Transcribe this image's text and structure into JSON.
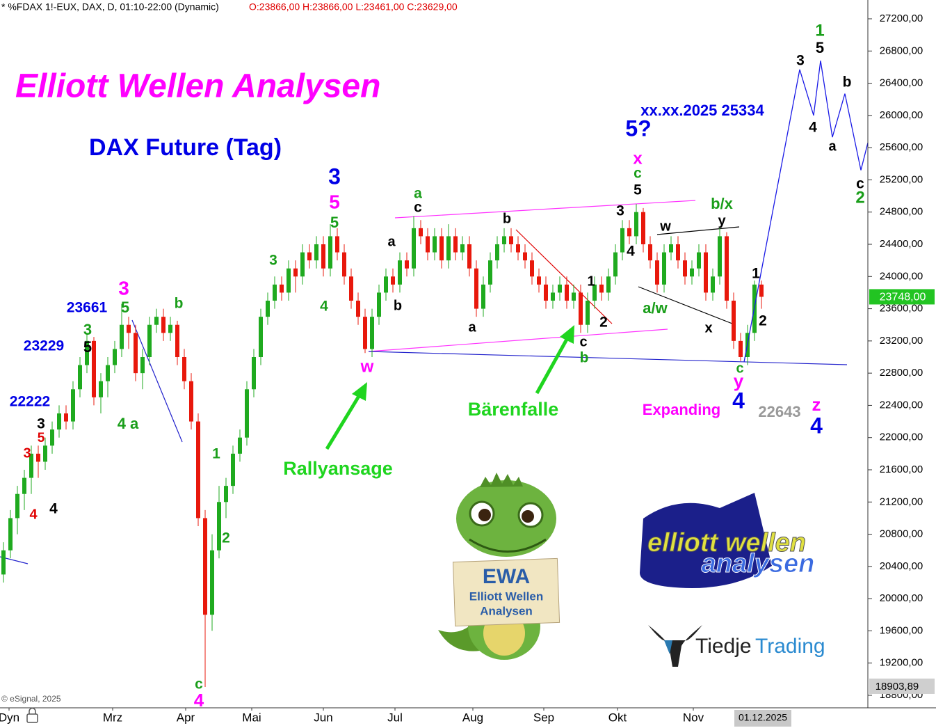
{
  "chart_data": {
    "type": "candlestick",
    "header": "* %FDAX 1!-EUX, DAX, D, 01:10-22:00 (Dynamic)",
    "header_ohlc": "O:23866,00 H:23866,00 L:23461,00 C:23629,00",
    "title": "Elliott Wellen Analysen",
    "subtitle": "DAX Future (Tag)",
    "up_color": "#1faa1f",
    "down_color": "#e8180c",
    "ylim": [
      18800,
      27200
    ],
    "yticks": [
      {
        "value": 18800,
        "label": "18800,00"
      },
      {
        "value": 19200,
        "label": "19200,00"
      },
      {
        "value": 19600,
        "label": "19600,00"
      },
      {
        "value": 20000,
        "label": "20000,00"
      },
      {
        "value": 20400,
        "label": "20400,00"
      },
      {
        "value": 20800,
        "label": "20800,00"
      },
      {
        "value": 21200,
        "label": "21200,00"
      },
      {
        "value": 21600,
        "label": "21600,00"
      },
      {
        "value": 22000,
        "label": "22000,00"
      },
      {
        "value": 22400,
        "label": "22400,00"
      },
      {
        "value": 22800,
        "label": "22800,00"
      },
      {
        "value": 23200,
        "label": "23200,00"
      },
      {
        "value": 23600,
        "label": "23600,00"
      },
      {
        "value": 24000,
        "label": "24000,00"
      },
      {
        "value": 24400,
        "label": "24400,00"
      },
      {
        "value": 24800,
        "label": "24800,00"
      },
      {
        "value": 25200,
        "label": "25200,00"
      },
      {
        "value": 25600,
        "label": "25600,00"
      },
      {
        "value": 26000,
        "label": "26000,00"
      },
      {
        "value": 26400,
        "label": "26400,00"
      },
      {
        "value": 26800,
        "label": "26800,00"
      },
      {
        "value": 27200,
        "label": "27200,00"
      }
    ],
    "xticks": [
      {
        "value": 0.8,
        "label": "Dyn"
      },
      {
        "value": 15.7,
        "label": "Mrz"
      },
      {
        "value": 26.2,
        "label": "Apr"
      },
      {
        "value": 35.7,
        "label": "Mai"
      },
      {
        "value": 46,
        "label": "Jun"
      },
      {
        "value": 56.3,
        "label": "Jul"
      },
      {
        "value": 67.5,
        "label": "Aug"
      },
      {
        "value": 77.7,
        "label": "Sep"
      },
      {
        "value": 88.3,
        "label": "Okt"
      },
      {
        "value": 99.2,
        "label": "Nov"
      }
    ],
    "current_date": "01.12.2025",
    "last_price": {
      "value": 23748,
      "label": "23748,00",
      "color": "#22c422"
    },
    "low_marker": {
      "value": 18903.89,
      "label": "18903,89"
    },
    "copyright": "© eSignal, 2025",
    "ohlc": [
      [
        20300,
        20700,
        20200,
        20600
      ],
      [
        20600,
        21100,
        20500,
        21000
      ],
      [
        21000,
        21400,
        20800,
        21300
      ],
      [
        21300,
        21600,
        21100,
        21500
      ],
      [
        21500,
        21900,
        21300,
        21800
      ],
      [
        21800,
        21900,
        21500,
        21700
      ],
      [
        21700,
        22000,
        21600,
        21900
      ],
      [
        21900,
        22200,
        21800,
        22100
      ],
      [
        22100,
        22400,
        22000,
        22300
      ],
      [
        22300,
        22400,
        22100,
        22200
      ],
      [
        22200,
        22700,
        22100,
        22600
      ],
      [
        22600,
        23000,
        22500,
        22900
      ],
      [
        22900,
        23300,
        22800,
        23200
      ],
      [
        23200,
        23250,
        22400,
        22500
      ],
      [
        22500,
        22800,
        22300,
        22700
      ],
      [
        22700,
        23000,
        22500,
        22900
      ],
      [
        22900,
        23200,
        22800,
        23100
      ],
      [
        23100,
        23660,
        23000,
        23400
      ],
      [
        23400,
        23500,
        23100,
        23300
      ],
      [
        23300,
        23400,
        22700,
        22800
      ],
      [
        22800,
        23100,
        22600,
        23000
      ],
      [
        23000,
        23500,
        22900,
        23400
      ],
      [
        23400,
        23600,
        23300,
        23500
      ],
      [
        23500,
        23600,
        23200,
        23300
      ],
      [
        23300,
        23500,
        23200,
        23400
      ],
      [
        23400,
        23450,
        22900,
        23000
      ],
      [
        23000,
        23100,
        22600,
        22700
      ],
      [
        22700,
        22800,
        22100,
        22200
      ],
      [
        22200,
        22300,
        20900,
        21000
      ],
      [
        21000,
        21100,
        18904,
        19800
      ],
      [
        19800,
        20800,
        19600,
        20600
      ],
      [
        20600,
        21400,
        20500,
        21200
      ],
      [
        21200,
        21500,
        21000,
        21400
      ],
      [
        21400,
        21900,
        21300,
        21800
      ],
      [
        21800,
        22100,
        21700,
        22000
      ],
      [
        22000,
        22700,
        21900,
        22600
      ],
      [
        22600,
        23100,
        22500,
        23000
      ],
      [
        23000,
        23600,
        22900,
        23500
      ],
      [
        23500,
        23800,
        23400,
        23700
      ],
      [
        23700,
        24000,
        23600,
        23900
      ],
      [
        23900,
        24000,
        23700,
        23800
      ],
      [
        23800,
        24200,
        23700,
        24100
      ],
      [
        24100,
        24200,
        23800,
        24000
      ],
      [
        24000,
        24400,
        23900,
        24300
      ],
      [
        24300,
        24400,
        24100,
        24200
      ],
      [
        24200,
        24500,
        24100,
        24400
      ],
      [
        24400,
        24500,
        24000,
        24100
      ],
      [
        24100,
        24650,
        24000,
        24500
      ],
      [
        24500,
        24600,
        24200,
        24300
      ],
      [
        24300,
        24400,
        23900,
        24000
      ],
      [
        24000,
        24100,
        23600,
        23700
      ],
      [
        23700,
        23800,
        23400,
        23500
      ],
      [
        23500,
        23600,
        23050,
        23100
      ],
      [
        23100,
        23600,
        23000,
        23500
      ],
      [
        23500,
        23900,
        23400,
        23800
      ],
      [
        23800,
        24100,
        23700,
        24000
      ],
      [
        24000,
        24100,
        23800,
        23900
      ],
      [
        23900,
        24300,
        23800,
        24200
      ],
      [
        24200,
        24300,
        24000,
        24100
      ],
      [
        24100,
        24750,
        24000,
        24600
      ],
      [
        24600,
        24700,
        24400,
        24500
      ],
      [
        24500,
        24600,
        24200,
        24300
      ],
      [
        24300,
        24600,
        24200,
        24500
      ],
      [
        24500,
        24600,
        24100,
        24200
      ],
      [
        24200,
        24650,
        24100,
        24500
      ],
      [
        24500,
        24600,
        24200,
        24300
      ],
      [
        24300,
        24500,
        24200,
        24400
      ],
      [
        24400,
        24500,
        24000,
        24100
      ],
      [
        24100,
        24200,
        23500,
        23600
      ],
      [
        23600,
        24000,
        23500,
        23900
      ],
      [
        23900,
        24300,
        23800,
        24200
      ],
      [
        24200,
        24500,
        24100,
        24400
      ],
      [
        24400,
        24600,
        24300,
        24500
      ],
      [
        24500,
        24600,
        24300,
        24400
      ],
      [
        24400,
        24500,
        24200,
        24300
      ],
      [
        24300,
        24400,
        24100,
        24200
      ],
      [
        24200,
        24300,
        23900,
        24000
      ],
      [
        24000,
        24100,
        23800,
        23900
      ],
      [
        23900,
        24000,
        23600,
        23700
      ],
      [
        23700,
        23900,
        23600,
        23800
      ],
      [
        23800,
        24000,
        23700,
        23900
      ],
      [
        23900,
        24000,
        23600,
        23700
      ],
      [
        23700,
        23900,
        23600,
        23800
      ],
      [
        23800,
        23900,
        23300,
        23400
      ],
      [
        23400,
        23800,
        23300,
        23700
      ],
      [
        23700,
        24000,
        23600,
        23900
      ],
      [
        23900,
        24000,
        23700,
        23800
      ],
      [
        23800,
        24100,
        23700,
        24000
      ],
      [
        24000,
        24400,
        23900,
        24300
      ],
      [
        24300,
        24700,
        24200,
        24600
      ],
      [
        24600,
        24700,
        24400,
        24500
      ],
      [
        24500,
        24900,
        24400,
        24800
      ],
      [
        24800,
        24850,
        24300,
        24400
      ],
      [
        24400,
        24500,
        24100,
        24200
      ],
      [
        24200,
        24300,
        23800,
        23900
      ],
      [
        23900,
        24400,
        23800,
        24300
      ],
      [
        24300,
        24500,
        24200,
        24400
      ],
      [
        24400,
        24500,
        24100,
        24200
      ],
      [
        24200,
        24300,
        23900,
        24000
      ],
      [
        24000,
        24200,
        23900,
        24100
      ],
      [
        24100,
        24400,
        24000,
        24300
      ],
      [
        24300,
        24400,
        23700,
        23800
      ],
      [
        23800,
        24100,
        23700,
        24000
      ],
      [
        24000,
        24600,
        23900,
        24500
      ],
      [
        24500,
        24550,
        23600,
        23700
      ],
      [
        23700,
        23800,
        23100,
        23200
      ],
      [
        23200,
        23300,
        22950,
        23000
      ],
      [
        23000,
        23400,
        22900,
        23300
      ],
      [
        23300,
        23950,
        23200,
        23900
      ],
      [
        23900,
        23950,
        23600,
        23748
      ]
    ],
    "forecast": {
      "color": "#1a1ae6",
      "x": [
        106.5,
        114.5,
        116.5,
        117.5,
        119.2,
        121,
        123.3,
        124.3
      ],
      "values": [
        22940,
        26570,
        26000,
        26680,
        25730,
        26270,
        25320,
        25660
      ]
    },
    "annotations": [
      {
        "text": "23661",
        "color": "#0000e6"
      },
      {
        "text": "3",
        "color": "#ff00ff"
      },
      {
        "text": "5",
        "color": "#1a9e1a"
      },
      {
        "text": "b",
        "color": "#1a9e1a"
      },
      {
        "text": "23229",
        "color": "#0000e6"
      },
      {
        "text": "3",
        "color": "#1a9e1a"
      },
      {
        "text": "5",
        "color": "#000000"
      },
      {
        "text": "22222",
        "color": "#0000e6"
      },
      {
        "text": "3",
        "color": "#000000"
      },
      {
        "text": "5",
        "color": "#e00000"
      },
      {
        "text": "3",
        "color": "#e00000"
      },
      {
        "text": "4",
        "color": "#e00000"
      },
      {
        "text": "4",
        "color": "#000000"
      },
      {
        "text": "4 a",
        "color": "#1a9e1a"
      },
      {
        "text": "1",
        "color": "#1a9e1a"
      },
      {
        "text": "2",
        "color": "#1a9e1a"
      },
      {
        "text": "c",
        "color": "#1a9e1a"
      },
      {
        "text": "4",
        "color": "#ff00ff"
      },
      {
        "text": "3",
        "color": "#0000e6"
      },
      {
        "text": "5",
        "color": "#ff00ff"
      },
      {
        "text": "5",
        "color": "#1a9e1a"
      },
      {
        "text": "3",
        "color": "#1a9e1a"
      },
      {
        "text": "4",
        "color": "#1a9e1a"
      },
      {
        "text": "w",
        "color": "#ff00ff"
      },
      {
        "text": "Rallyansage",
        "color": "#1fd51f"
      },
      {
        "text": "a",
        "color": "#000000"
      },
      {
        "text": "b",
        "color": "#000000"
      },
      {
        "text": "a",
        "color": "#1a9e1a"
      },
      {
        "text": "c",
        "color": "#000000"
      },
      {
        "text": "b",
        "color": "#000000"
      },
      {
        "text": "a",
        "color": "#000000"
      },
      {
        "text": "Bärenfalle",
        "color": "#1fd51f"
      },
      {
        "text": "1",
        "color": "#000000"
      },
      {
        "text": "2",
        "color": "#000000"
      },
      {
        "text": "c",
        "color": "#000000"
      },
      {
        "text": "b",
        "color": "#1a9e1a"
      },
      {
        "text": "xx.xx.2025 25334",
        "color": "#0000e6"
      },
      {
        "text": "5?",
        "color": "#0000e6"
      },
      {
        "text": "x",
        "color": "#ff00ff"
      },
      {
        "text": "c",
        "color": "#1a9e1a"
      },
      {
        "text": "5",
        "color": "#000000"
      },
      {
        "text": "3",
        "color": "#000000"
      },
      {
        "text": "4",
        "color": "#000000"
      },
      {
        "text": "w",
        "color": "#000000"
      },
      {
        "text": "a/w",
        "color": "#1a9e1a"
      },
      {
        "text": "b/x",
        "color": "#1a9e1a"
      },
      {
        "text": "y",
        "color": "#000000"
      },
      {
        "text": "x",
        "color": "#000000"
      },
      {
        "text": "c",
        "color": "#1a9e1a"
      },
      {
        "text": "y",
        "color": "#ff00ff"
      },
      {
        "text": "4",
        "color": "#0000e6"
      },
      {
        "text": "Expanding",
        "color": "#ff00ff"
      },
      {
        "text": "22643",
        "color": "#999999"
      },
      {
        "text": "z",
        "color": "#ff00ff"
      },
      {
        "text": "4",
        "color": "#0000e6"
      },
      {
        "text": "1",
        "color": "#000000"
      },
      {
        "text": "2",
        "color": "#000000"
      },
      {
        "text": "1",
        "color": "#1a9e1a"
      },
      {
        "text": "5",
        "color": "#000000"
      },
      {
        "text": "3",
        "color": "#000000"
      },
      {
        "text": "4",
        "color": "#000000"
      },
      {
        "text": "b",
        "color": "#000000"
      },
      {
        "text": "a",
        "color": "#000000"
      },
      {
        "text": "c",
        "color": "#000000"
      },
      {
        "text": "2",
        "color": "#1a9e1a"
      }
    ],
    "logos": {
      "sign_title": "EWA",
      "sign_line1": "Elliott Wellen",
      "sign_line2": "Analysen",
      "ewa_line1": "elliott wellen",
      "ewa_line2": "analysen",
      "tiedje": "Tiedje",
      "trading": "Trading"
    }
  }
}
